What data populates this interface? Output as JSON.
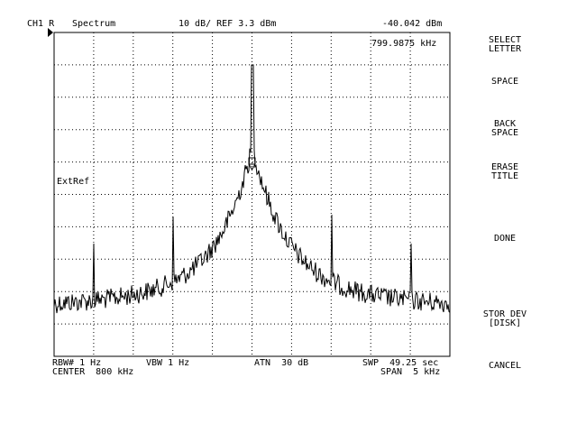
{
  "header": {
    "channel": "CH1 R",
    "mode": "Spectrum",
    "scale_ref": "10 dB/ REF 3.3 dBm",
    "marker_level": "-40.042 dBm",
    "marker_freq": "799.9875 kHz"
  },
  "trace_annotation": "ExtRef",
  "footer": {
    "rbw": "RBW# 1 Hz",
    "vbw": "VBW 1 Hz",
    "atn": "ATN  30 dB",
    "swp": "SWP  49.25 sec",
    "center": "CENTER  800 kHz",
    "span": "SPAN  5 kHz"
  },
  "softkeys": [
    {
      "line1": "SELECT",
      "line2": "LETTER"
    },
    {
      "line1": "SPACE",
      "line2": ""
    },
    {
      "line1": "BACK",
      "line2": "SPACE"
    },
    {
      "line1": "ERASE",
      "line2": "TITLE"
    },
    {
      "line1": "DONE",
      "line2": ""
    },
    {
      "line1": "STOR DEV",
      "line2": "[DISK]"
    },
    {
      "line1": "CANCEL",
      "line2": ""
    }
  ],
  "colors": {
    "trace": "#000000",
    "grid": "#000000",
    "background": "#ffffff"
  }
}
